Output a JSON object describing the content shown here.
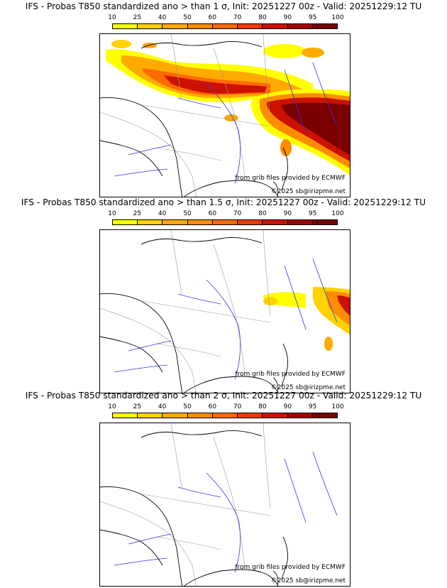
{
  "scale": {
    "labels": [
      "10",
      "25",
      "40",
      "50",
      "60",
      "70",
      "80",
      "90",
      "95",
      "100"
    ],
    "colors": [
      "#ffff00",
      "#ffd200",
      "#ffaa00",
      "#ff8c00",
      "#ff6a00",
      "#ee3a00",
      "#cc1100",
      "#a30000",
      "#7a0000"
    ]
  },
  "panels": [
    {
      "title": "IFS - Probas T850  standardized ano > than 1 σ, Init: 20251227 00z - Valid: 20251229:12 TU",
      "credit": "from grib files provided by ECMWF",
      "copyright": "©2025 sb@irizpme.net"
    },
    {
      "title": "IFS - Probas T850  standardized ano > than 1.5 σ, Init: 20251227 00z - Valid: 20251229:12 TU",
      "credit": "from grib files provided by ECMWF",
      "copyright": "©2025 sb@irizpme.net"
    },
    {
      "title": "IFS - Probas T850  standardized ano > than 2 σ, Init: 20251227 00z - Valid: 20251229:12 TU",
      "credit": "from grib files provided by ECMWF",
      "copyright": "©2025 sb@irizpme.net"
    }
  ],
  "colors": {
    "coast": "#000000",
    "rivers": "#3333ee",
    "borders": "#9a9a9a"
  }
}
